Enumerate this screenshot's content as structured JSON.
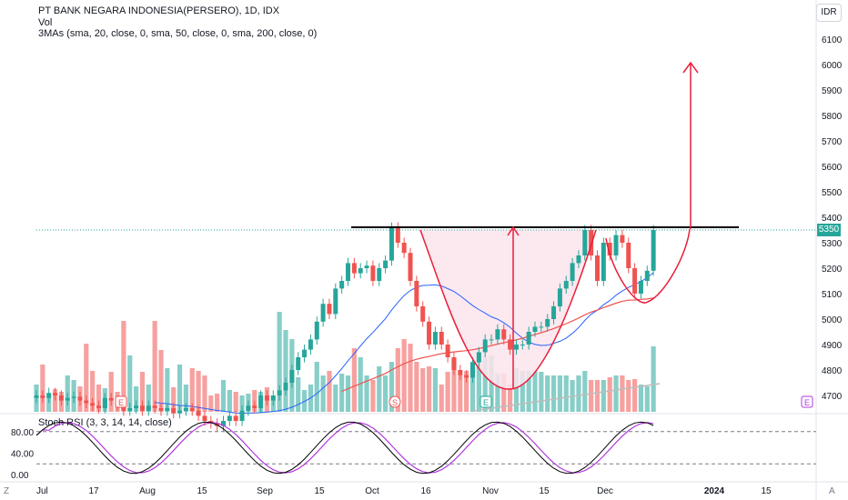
{
  "header": {
    "title": "PT BANK NEGARA INDONESIA(PERSERO), 1D, IDX",
    "volume_label": "Vol",
    "ma_label": "3MAs (sma, 20, close, 0, sma, 50, close, 0, sma, 200, close, 0)",
    "currency": "IDR"
  },
  "rsi": {
    "label": "Stoch RSI (3, 3, 14, 14, close)",
    "ticks": [
      "80.00",
      "40.00",
      "0.00"
    ]
  },
  "last_price_tag": "5350",
  "corner_labels": {
    "bottom_left": "Z",
    "bottom_right": "A"
  },
  "colors": {
    "up": "#26a69a",
    "down": "#ef5350",
    "ma20": "#2962ff",
    "ma50": "#ef5350",
    "ma200": "#bdbdbd",
    "pattern": "#e91e3b",
    "resistance": "#000000",
    "k": "#000000",
    "d": "#b038dc"
  },
  "chart_data": {
    "type": "candlestick",
    "title": "PT BANK NEGARA INDONESIA(PERSERO), 1D, IDX",
    "ylim": [
      4650,
      6150
    ],
    "y_ticks": [
      6100,
      6000,
      5900,
      5800,
      5700,
      5600,
      5500,
      5400,
      5300,
      5200,
      5100,
      5000,
      4900,
      4800,
      4700
    ],
    "x_ticks": [
      "Jul",
      "17",
      "Aug",
      "15",
      "Sep",
      "15",
      "Oct",
      "16",
      "Nov",
      "15",
      "Dec",
      "2024",
      "15"
    ],
    "resistance_level": 5350,
    "target_level": 6000,
    "annotations": [
      "cup-and-handle pattern",
      "breakout arrow target ~6000"
    ],
    "event_markers": [
      "E",
      "S",
      "E",
      "E"
    ],
    "candles_close": [
      4700,
      4690,
      4710,
      4700,
      4680,
      4690,
      4695,
      4680,
      4670,
      4660,
      4650,
      4690,
      4680,
      4660,
      4640,
      4650,
      4660,
      4640,
      4660,
      4650,
      4640,
      4650,
      4630,
      4640,
      4650,
      4640,
      4620,
      4600,
      4590,
      4580,
      4600,
      4620,
      4600,
      4640,
      4660,
      4650,
      4700,
      4680,
      4700,
      4720,
      4750,
      4800,
      4850,
      4880,
      4920,
      4990,
      5060,
      5020,
      5120,
      5150,
      5220,
      5180,
      5200,
      5210,
      5150,
      5200,
      5230,
      5360,
      5300,
      5260,
      5150,
      5050,
      4990,
      4900,
      4950,
      4900,
      4850,
      4800,
      4780,
      4770,
      4830,
      4870,
      4920,
      4920,
      4960,
      4920,
      4880,
      4900,
      4900,
      4950,
      4970,
      4970,
      5000,
      5050,
      5120,
      5150,
      5220,
      5250,
      5350,
      5250,
      5150,
      5300,
      5250,
      5330,
      5300,
      5200,
      5100,
      5150,
      5190,
      5350
    ]
  }
}
